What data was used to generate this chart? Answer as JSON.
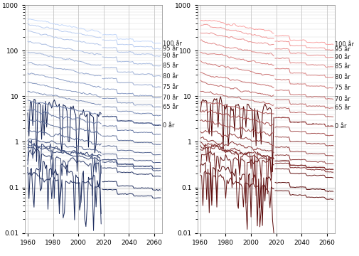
{
  "xlim": [
    1960,
    2065
  ],
  "ylim_log": [
    0.01,
    1000
  ],
  "xticks": [
    1960,
    1980,
    2000,
    2020,
    2040,
    2060
  ],
  "ages": [
    0,
    5,
    10,
    15,
    20,
    25,
    30,
    35,
    40,
    45,
    50,
    55,
    60,
    65,
    70,
    75,
    80,
    85,
    90,
    95,
    100
  ],
  "labeled_ages": [
    0,
    65,
    70,
    75,
    80,
    85,
    90,
    95,
    100
  ],
  "age_labels": [
    "0 år",
    "65 år",
    "70 år",
    "75 år",
    "80 år",
    "85 år",
    "90 år",
    "95 år",
    "100 år"
  ],
  "base_rates": {
    "0": 8.0,
    "5": 0.3,
    "10": 0.2,
    "15": 0.6,
    "20": 0.9,
    "25": 0.8,
    "30": 0.9,
    "35": 1.2,
    "40": 1.8,
    "45": 3.0,
    "50": 5.0,
    "55": 8.0,
    "60": 13.0,
    "65": 20.0,
    "70": 32.0,
    "75": 55.0,
    "80": 95.0,
    "85": 160.0,
    "90": 260.0,
    "95": 380.0,
    "100": 500.0
  },
  "trend_rate": 0.012,
  "observed_end": 2018,
  "proj_end": 2065,
  "x_start": 1960,
  "label_fontsize": 6.0,
  "tick_fontsize": 6.5,
  "line_width": 0.7
}
